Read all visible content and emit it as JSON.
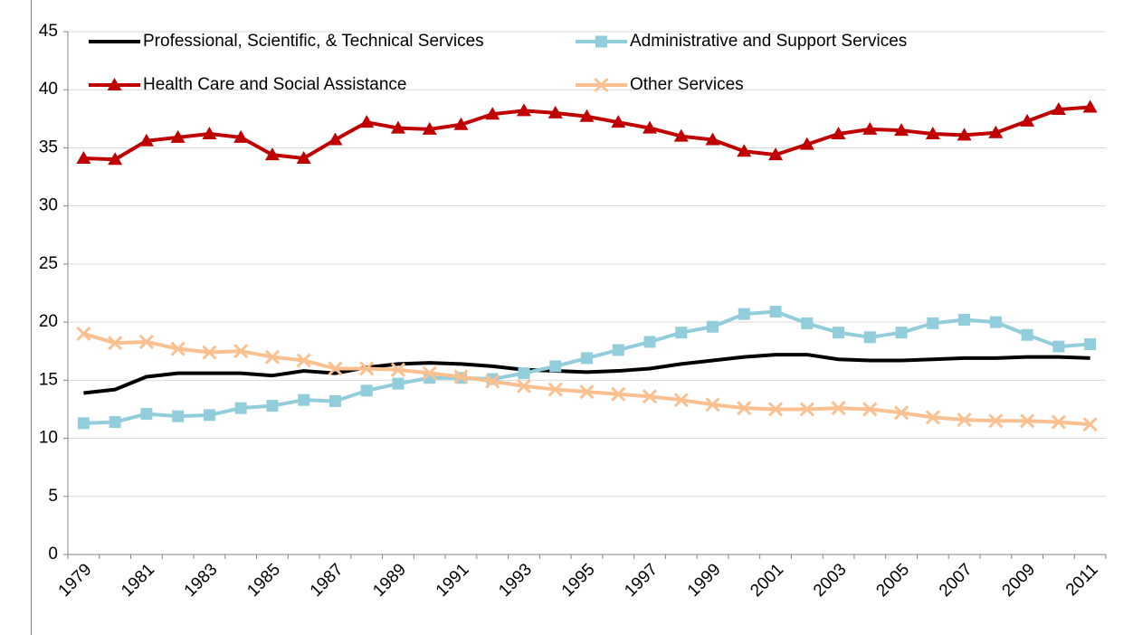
{
  "chart_data": {
    "type": "line",
    "categories": [
      "1979",
      null,
      "1981",
      null,
      "1983",
      null,
      "1985",
      null,
      "1987",
      null,
      "1989",
      null,
      "1991",
      null,
      "1993",
      null,
      "1995",
      null,
      "1997",
      null,
      "1999",
      null,
      "2001",
      null,
      "2003",
      null,
      "2005",
      null,
      "2007",
      null,
      "2009",
      null,
      "2011"
    ],
    "ylim": [
      0,
      45
    ],
    "yticks": [
      0,
      5,
      10,
      15,
      20,
      25,
      30,
      35,
      40,
      45
    ],
    "grid": true,
    "series": [
      {
        "name": "Professional, Scientific, & Technical Services",
        "color": "#000000",
        "marker": "none",
        "values": [
          13.9,
          14.2,
          15.3,
          15.6,
          15.6,
          15.6,
          15.4,
          15.8,
          15.6,
          16.1,
          16.4,
          16.5,
          16.4,
          16.2,
          15.9,
          15.8,
          15.7,
          15.8,
          16.0,
          16.4,
          16.7,
          17.0,
          17.2,
          17.2,
          16.8,
          16.7,
          16.7,
          16.8,
          16.9,
          16.9,
          17.0,
          17.0,
          16.9
        ]
      },
      {
        "name": "Administrative and Support Services",
        "color": "#92cddc",
        "marker": "square",
        "values": [
          11.3,
          11.4,
          12.1,
          11.9,
          12.0,
          12.6,
          12.8,
          13.3,
          13.2,
          14.1,
          14.7,
          15.2,
          15.2,
          15.1,
          15.6,
          16.2,
          16.9,
          17.6,
          18.3,
          19.1,
          19.6,
          20.7,
          20.9,
          19.9,
          19.1,
          18.7,
          19.1,
          19.9,
          20.2,
          20.0,
          18.9,
          17.9,
          18.1
        ]
      },
      {
        "name": "Health Care and Social Assistance",
        "color": "#c00000",
        "marker": "triangle",
        "values": [
          34.1,
          34.0,
          35.6,
          35.9,
          36.2,
          35.9,
          34.4,
          34.1,
          35.7,
          37.2,
          36.7,
          36.6,
          37.0,
          37.9,
          38.2,
          38.0,
          37.7,
          37.2,
          36.7,
          36.0,
          35.7,
          34.7,
          34.4,
          35.3,
          36.2,
          36.6,
          36.5,
          36.2,
          36.1,
          36.3,
          37.3,
          38.3,
          38.5
        ]
      },
      {
        "name": "Other Services",
        "color": "#fac090",
        "marker": "x",
        "values": [
          19.0,
          18.2,
          18.3,
          17.7,
          17.4,
          17.5,
          17.0,
          16.7,
          16.0,
          16.0,
          15.9,
          15.6,
          15.3,
          14.9,
          14.5,
          14.2,
          14.0,
          13.8,
          13.6,
          13.3,
          12.9,
          12.6,
          12.5,
          12.5,
          12.6,
          12.5,
          12.2,
          11.8,
          11.6,
          11.5,
          11.5,
          11.4,
          11.2
        ]
      }
    ]
  }
}
